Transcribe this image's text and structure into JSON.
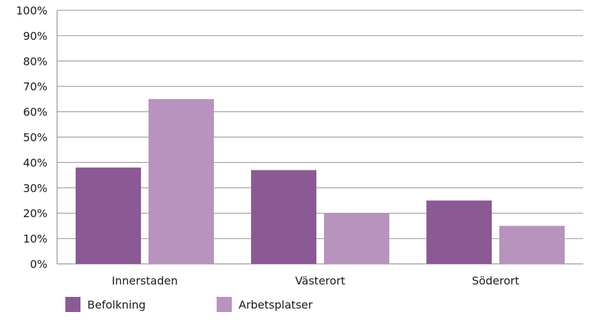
{
  "chart_data": {
    "type": "bar",
    "title": "",
    "xlabel": "",
    "ylabel": "",
    "categories": [
      "Innerstaden",
      "Västerort",
      "Söderort"
    ],
    "series": [
      {
        "name": "Befolkning",
        "values": [
          38,
          37,
          25
        ],
        "color": "#8b5a94"
      },
      {
        "name": "Arbetsplatser",
        "values": [
          65,
          20,
          15
        ],
        "color": "#b793be"
      }
    ],
    "ylim": [
      0,
      100
    ],
    "yticks": [
      "0%",
      "10%",
      "20%",
      "30%",
      "40%",
      "50%",
      "60%",
      "70%",
      "80%",
      "90%",
      "100%"
    ],
    "grid": true,
    "legend_position": "bottom-left"
  }
}
